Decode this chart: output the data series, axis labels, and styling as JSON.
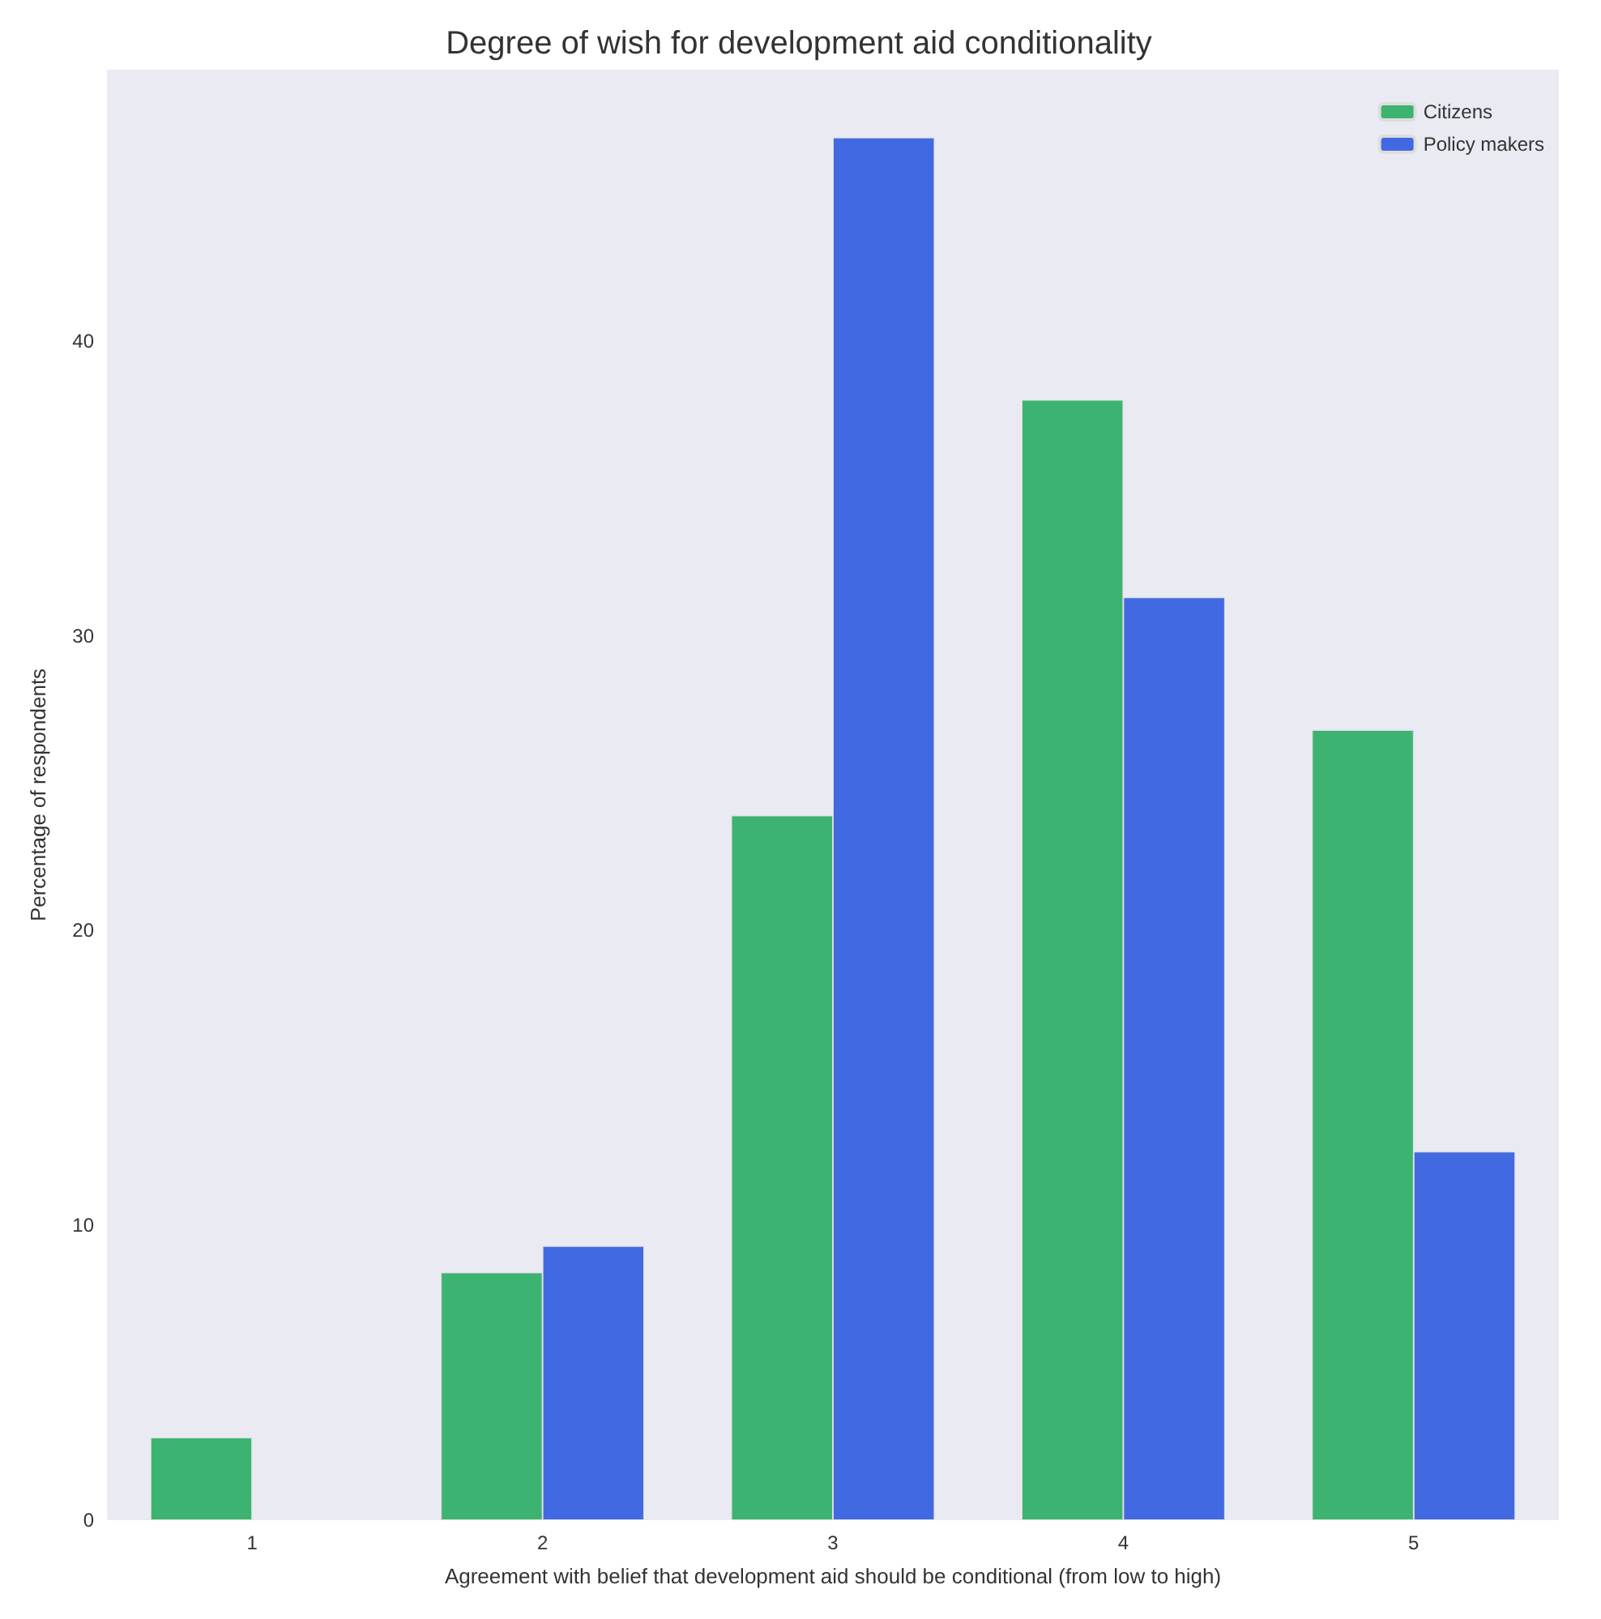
{
  "chart_data": {
    "type": "bar",
    "title": "Degree of wish for development aid conditionality",
    "xlabel": "Agreement with belief that development aid should be conditional (from low to high)",
    "ylabel": "Percentage of respondents",
    "categories": [
      "1",
      "2",
      "3",
      "4",
      "5"
    ],
    "series": [
      {
        "name": "Citizens",
        "color": "#3cb371",
        "values": [
          2.8,
          8.4,
          23.9,
          38.0,
          26.8
        ]
      },
      {
        "name": "Policy makers",
        "color": "#4169e1",
        "values": [
          null,
          9.3,
          46.9,
          31.3,
          12.5
        ]
      }
    ],
    "ylim": [
      0,
      49.2
    ],
    "yticks": [
      0,
      10,
      20,
      30,
      40
    ],
    "grid": false,
    "legend": "top right"
  }
}
